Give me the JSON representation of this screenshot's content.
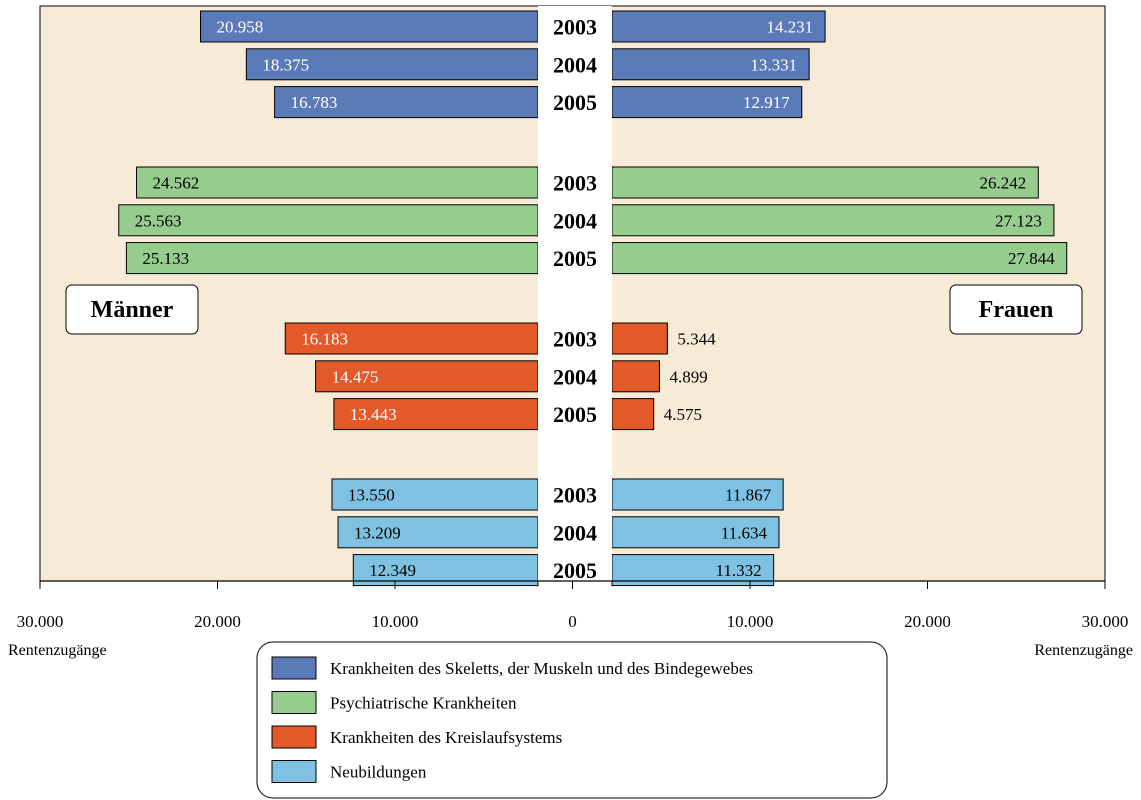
{
  "chart_data": {
    "type": "bar",
    "orientation": "horizontal-butterfly",
    "left_label": "Männer",
    "right_label": "Frauen",
    "xlim": [
      -30000,
      30000
    ],
    "x_ticks": [
      -30000,
      -20000,
      -10000,
      0,
      10000,
      20000,
      30000
    ],
    "x_tick_labels": [
      "30.000",
      "20.000",
      "10.000",
      "0",
      "10.000",
      "20.000",
      "30.000"
    ],
    "axis_unit_left": "Rentenzugänge",
    "axis_unit_right": "Rentenzugänge",
    "years": [
      "2003",
      "2004",
      "2005"
    ],
    "groups": [
      {
        "name": "Krankheiten des Skeletts, der Muskeln und des Bindegewebes",
        "color": "#5b7ab8",
        "text_color": "#ffffff",
        "men": [
          20958,
          18375,
          16783
        ],
        "women": [
          14231,
          13331,
          12917
        ],
        "men_labels": [
          "20.958",
          "18.375",
          "16.783"
        ],
        "women_labels": [
          "14.231",
          "13.331",
          "12.917"
        ],
        "women_label_outside": false
      },
      {
        "name": "Psychiatrische Krankheiten",
        "color": "#96cd8e",
        "text_color": "#000000",
        "men": [
          24562,
          25563,
          25133
        ],
        "women": [
          26242,
          27123,
          27844
        ],
        "men_labels": [
          "24.562",
          "25.563",
          "25.133"
        ],
        "women_labels": [
          "26.242",
          "27.123",
          "27.844"
        ],
        "women_label_outside": false
      },
      {
        "name": "Krankheiten des Kreislaufsystems",
        "color": "#e2592a",
        "text_color": "#ffffff",
        "men": [
          16183,
          14475,
          13443
        ],
        "women": [
          5344,
          4899,
          4575
        ],
        "men_labels": [
          "16.183",
          "14.475",
          "13.443"
        ],
        "women_labels": [
          "5.344",
          "4.899",
          "4.575"
        ],
        "women_label_outside": true
      },
      {
        "name": "Neubildungen",
        "color": "#7ec1e3",
        "text_color": "#000000",
        "men": [
          13550,
          13209,
          12349
        ],
        "women": [
          11867,
          11634,
          11332
        ],
        "men_labels": [
          "13.550",
          "13.209",
          "12.349"
        ],
        "women_labels": [
          "11.867",
          "11.634",
          "11.332"
        ],
        "women_label_outside": false
      }
    ],
    "background_color": "#f7ebd7",
    "legend_placement": "bottom-center"
  }
}
